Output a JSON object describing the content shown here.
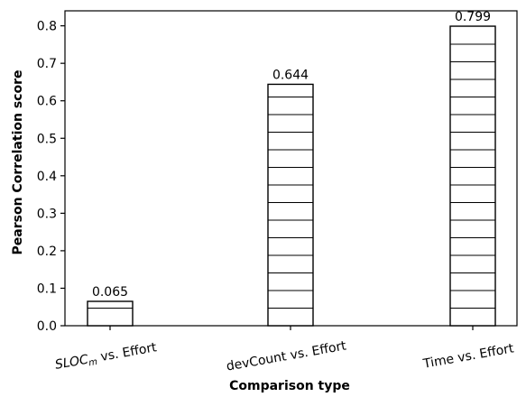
{
  "chart_data": {
    "type": "bar",
    "categories": [
      {
        "text": "SLOC",
        "sub": "m",
        "suffix": " vs. Effort"
      },
      {
        "text": "devCount vs. Effort",
        "sub": "",
        "suffix": ""
      },
      {
        "text": "Time vs. Effort",
        "sub": "",
        "suffix": ""
      }
    ],
    "values": [
      0.065,
      0.644,
      0.799
    ],
    "value_labels": [
      "0.065",
      "0.644",
      "0.799"
    ],
    "xlabel": "Comparison type",
    "ylabel": "Pearson Correlation score",
    "ylim": [
      0,
      0.84
    ],
    "yticks": [
      0.0,
      0.1,
      0.2,
      0.3,
      0.4,
      0.5,
      0.6,
      0.7,
      0.8
    ],
    "ytick_labels": [
      "0.0",
      "0.1",
      "0.2",
      "0.3",
      "0.4",
      "0.5",
      "0.6",
      "0.7",
      "0.8"
    ],
    "bar_fill": "#ffffff",
    "bar_hatch": "horizontal",
    "bar_edge": "#000000",
    "grid": false
  }
}
